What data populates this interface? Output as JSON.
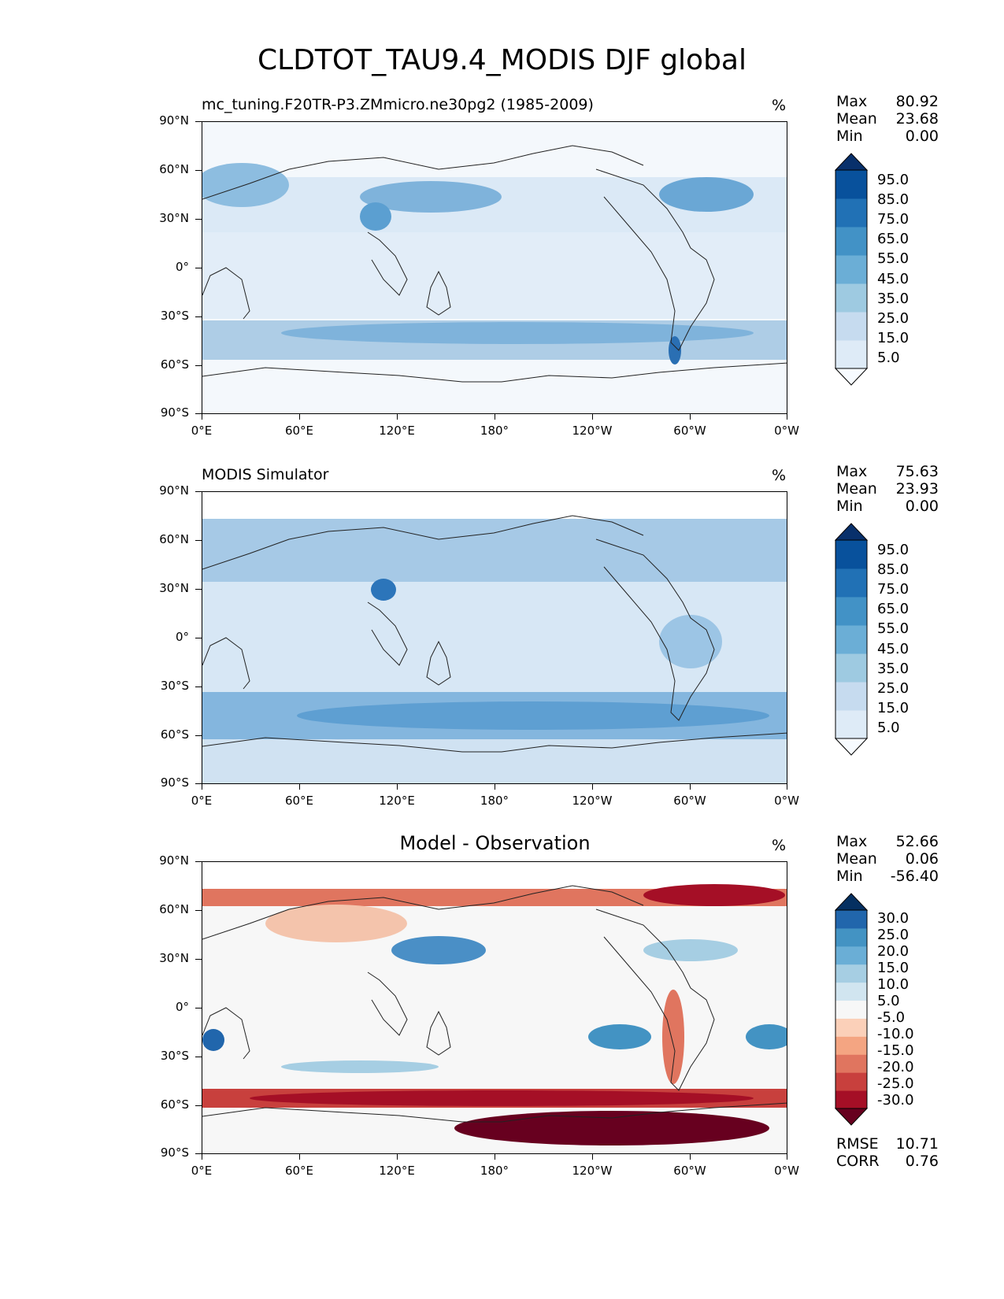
{
  "figure": {
    "title": "CLDTOT_TAU9.4_MODIS DJF global"
  },
  "axes": {
    "lat_ticks": [
      "90°N",
      "60°N",
      "30°N",
      "0°",
      "30°S",
      "60°S",
      "90°S"
    ],
    "lon_ticks": [
      "0°E",
      "60°E",
      "120°E",
      "180°",
      "120°W",
      "60°W",
      "0°W"
    ]
  },
  "panels": [
    {
      "title": "mc_tuning.F20TR-P3.ZMmicro.ne30pg2 (1985-2009)",
      "title_style": "left",
      "units": "%",
      "stats": [
        {
          "label": "Max",
          "value": "80.92"
        },
        {
          "label": "Mean",
          "value": "23.68"
        },
        {
          "label": "Min",
          "value": "0.00"
        }
      ],
      "colorbar": {
        "colors": [
          "#f7fbff",
          "#deebf7",
          "#c6dbef",
          "#9ecae1",
          "#6baed6",
          "#4292c6",
          "#2171b5",
          "#08519c",
          "#08306b"
        ],
        "ticks": [
          "95.0",
          "85.0",
          "75.0",
          "65.0",
          "55.0",
          "45.0",
          "35.0",
          "25.0",
          "15.0",
          "5.0"
        ]
      }
    },
    {
      "title": "MODIS Simulator",
      "title_style": "left",
      "units": "%",
      "stats": [
        {
          "label": "Max",
          "value": "75.63"
        },
        {
          "label": "Mean",
          "value": "23.93"
        },
        {
          "label": "Min",
          "value": "0.00"
        }
      ],
      "colorbar": {
        "colors": [
          "#f7fbff",
          "#deebf7",
          "#c6dbef",
          "#9ecae1",
          "#6baed6",
          "#4292c6",
          "#2171b5",
          "#08519c",
          "#08306b"
        ],
        "ticks": [
          "95.0",
          "85.0",
          "75.0",
          "65.0",
          "55.0",
          "45.0",
          "35.0",
          "25.0",
          "15.0",
          "5.0"
        ]
      }
    },
    {
      "title": "Model - Observation",
      "title_style": "center",
      "units": "%",
      "stats": [
        {
          "label": "Max",
          "value": "52.66"
        },
        {
          "label": "Mean",
          "value": "0.06"
        },
        {
          "label": "Min",
          "value": "-56.40"
        }
      ],
      "colorbar": {
        "colors": [
          "#67001f",
          "#a50f26",
          "#c8403d",
          "#e0755f",
          "#f4a582",
          "#fbd0b9",
          "#f7f7f7",
          "#d1e5f0",
          "#a6cee3",
          "#6aaed6",
          "#4393c3",
          "#2166ac",
          "#053061"
        ],
        "ticks": [
          "30.0",
          "25.0",
          "20.0",
          "15.0",
          "10.0",
          "5.0",
          "-5.0",
          "-10.0",
          "-15.0",
          "-20.0",
          "-25.0",
          "-30.0"
        ]
      },
      "metrics": [
        {
          "label": "RMSE",
          "value": "10.71"
        },
        {
          "label": "CORR",
          "value": "0.76"
        }
      ]
    }
  ]
}
